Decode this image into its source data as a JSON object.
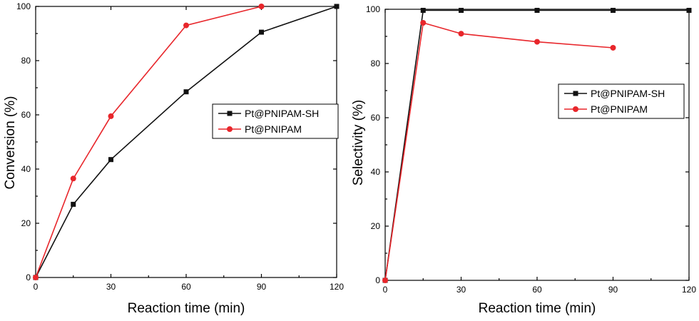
{
  "chart_data": [
    {
      "type": "line",
      "xlabel": "Reaction time (min)",
      "ylabel": "Conversion (%)",
      "xlim": [
        0,
        120
      ],
      "ylim": [
        0,
        100
      ],
      "xticks": [
        0,
        30,
        60,
        90,
        120
      ],
      "yticks": [
        0,
        20,
        40,
        60,
        80,
        100
      ],
      "grid": false,
      "legend_position": "right",
      "series": [
        {
          "name": "Pt@PNIPAM-SH",
          "color": "#111111",
          "marker": "square",
          "x": [
            0,
            15,
            30,
            60,
            90,
            120
          ],
          "y": [
            0,
            27,
            43.5,
            68.5,
            90.5,
            100
          ]
        },
        {
          "name": "Pt@PNIPAM",
          "color": "#e8262b",
          "marker": "circle",
          "x": [
            0,
            15,
            30,
            60,
            90
          ],
          "y": [
            0,
            36.5,
            59.5,
            93,
            100
          ]
        }
      ]
    },
    {
      "type": "line",
      "xlabel": "Reaction time (min)",
      "ylabel": "Selectivity (%)",
      "xlim": [
        0,
        120
      ],
      "ylim": [
        0,
        100
      ],
      "xticks": [
        0,
        30,
        60,
        90,
        120
      ],
      "yticks": [
        0,
        20,
        40,
        60,
        80,
        100
      ],
      "grid": false,
      "legend_position": "right",
      "series": [
        {
          "name": "Pt@PNIPAM-SH",
          "color": "#111111",
          "marker": "square",
          "x": [
            0,
            15,
            30,
            60,
            90,
            120
          ],
          "y": [
            0,
            99.6,
            99.6,
            99.6,
            99.6,
            99.6
          ]
        },
        {
          "name": "Pt@PNIPAM",
          "color": "#e8262b",
          "marker": "circle",
          "x": [
            0,
            15,
            30,
            60,
            90
          ],
          "y": [
            0,
            95,
            91,
            88,
            85.8
          ]
        }
      ]
    }
  ]
}
